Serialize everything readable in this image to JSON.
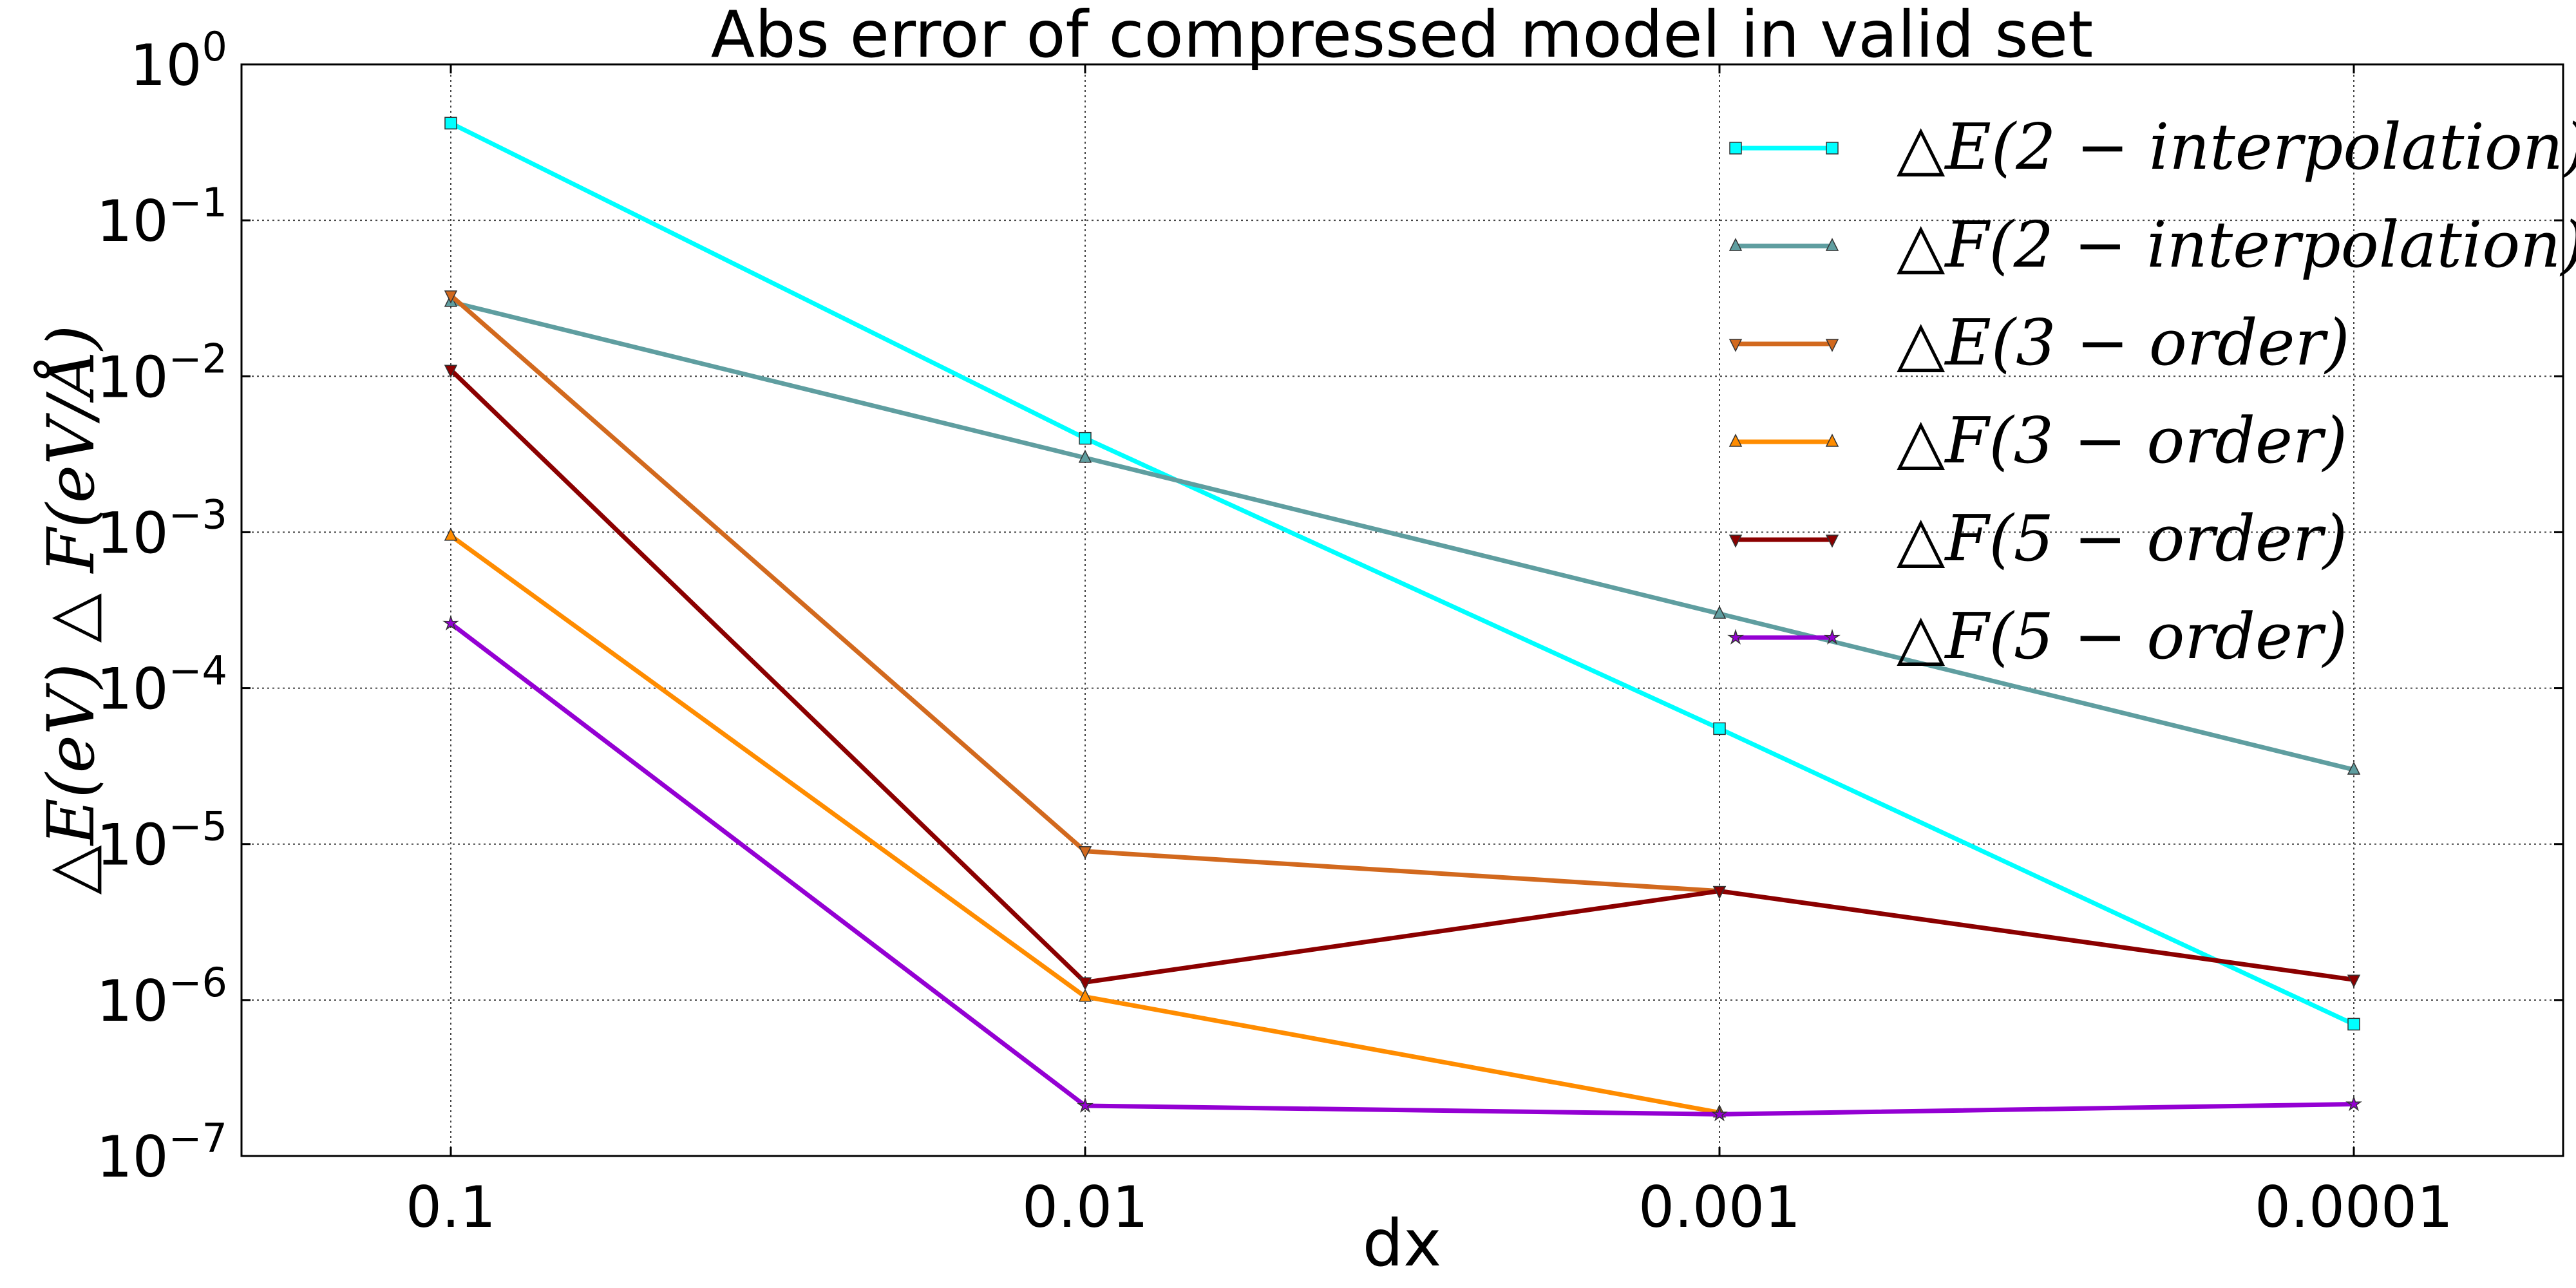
{
  "chart_data": {
    "type": "line",
    "title": "Abs error of compressed model in valid set",
    "xlabel": "dx",
    "ylabel": "△E(eV) △ F(eV/Å)",
    "y_scale": "log",
    "ylim": [
      1e-07,
      1
    ],
    "x_scale": "log (reversed)",
    "x_ticks": [
      "0.1",
      "0.01",
      "0.001",
      "0.0001"
    ],
    "x": [
      0.1,
      0.01,
      0.001,
      0.0001
    ],
    "y_ticks": [
      {
        "base": "10",
        "exp": "−7",
        "value": 1e-07
      },
      {
        "base": "10",
        "exp": "−6",
        "value": 1e-06
      },
      {
        "base": "10",
        "exp": "−5",
        "value": 1e-05
      },
      {
        "base": "10",
        "exp": "−4",
        "value": 0.0001
      },
      {
        "base": "10",
        "exp": "−3",
        "value": 0.001
      },
      {
        "base": "10",
        "exp": "−2",
        "value": 0.01
      },
      {
        "base": "10",
        "exp": "−1",
        "value": 0.1
      },
      {
        "base": "10",
        "exp": "0",
        "value": 1
      }
    ],
    "grid": true,
    "legend_position": "top-right",
    "series": [
      {
        "name": "△E(2 − interpolation)",
        "color": "#00FFFF",
        "marker": "square",
        "x": [
          0.1,
          0.01,
          0.001,
          0.0001
        ],
        "values": [
          0.42,
          0.004,
          5.5e-05,
          7e-07
        ]
      },
      {
        "name": "△F(2 − interpolation)",
        "color": "#5F9EA0",
        "marker": "triangle-up",
        "x": [
          0.1,
          0.01,
          0.001,
          0.0001
        ],
        "values": [
          0.03,
          0.003,
          0.0003,
          3e-05
        ]
      },
      {
        "name": "△E(3 − order)",
        "color": "#D2691E",
        "marker": "triangle-down",
        "x": [
          0.1,
          0.01,
          0.001
        ],
        "values": [
          0.033,
          9e-06,
          5e-06
        ]
      },
      {
        "name": "△F(3 − order)",
        "color": "#FF8C00",
        "marker": "triangle-up",
        "x": [
          0.1,
          0.01,
          0.001
        ],
        "values": [
          0.00095,
          1.05e-06,
          1.9e-07
        ]
      },
      {
        "name": "△F(5 − order)",
        "color": "#8B0000",
        "marker": "triangle-down",
        "x": [
          0.1,
          0.01,
          0.001,
          0.0001
        ],
        "values": [
          0.011,
          1.3e-06,
          5e-06,
          1.35e-06
        ]
      },
      {
        "name": "△F(5 − order)",
        "color": "#9400D3",
        "marker": "star",
        "x": [
          0.1,
          0.01,
          0.001,
          0.0001
        ],
        "values": [
          0.00026,
          2.1e-07,
          1.85e-07,
          2.15e-07
        ]
      }
    ]
  }
}
